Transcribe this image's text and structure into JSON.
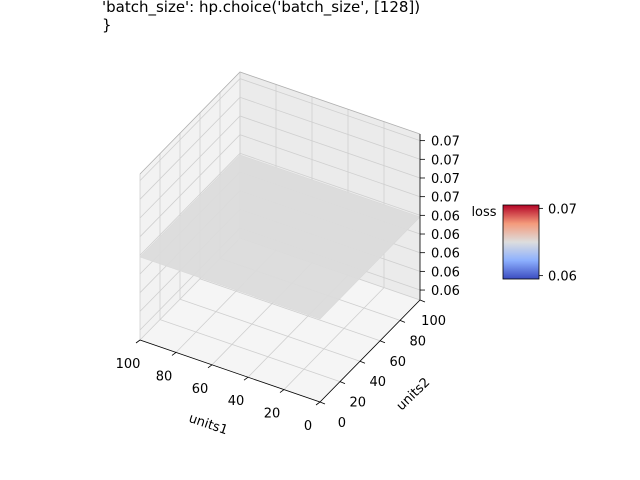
{
  "figure": {
    "title_lines": [
      "'batch_size': hp.choice('batch_size', [128])",
      "}"
    ]
  },
  "chart_data": {
    "type": "surface3d",
    "title": "'batch_size': hp.choice('batch_size', [128])\n}",
    "xlabel": "units1",
    "ylabel": "units2",
    "zlabel": "loss",
    "x_ticks": [
      "100",
      "80",
      "60",
      "40",
      "20",
      "0"
    ],
    "y_ticks": [
      "0",
      "20",
      "40",
      "60",
      "80",
      "100"
    ],
    "z_ticks": [
      "0.07",
      "0.07",
      "0.07",
      "0.07",
      "0.06",
      "0.06",
      "0.06",
      "0.06",
      "0.06"
    ],
    "x_range": [
      0,
      100
    ],
    "y_range": [
      0,
      100
    ],
    "z_range": [
      0.062,
      0.069
    ],
    "surface": {
      "x": [
        0,
        100
      ],
      "y": [
        0,
        100
      ],
      "z": [
        [
          0.0655,
          0.0655
        ],
        [
          0.0655,
          0.0655
        ]
      ]
    },
    "colormap": "coolwarm",
    "colorbar": {
      "ticks": [
        "0.07",
        "0.06"
      ],
      "range": [
        0.0595,
        0.0705
      ]
    },
    "grid": true
  }
}
